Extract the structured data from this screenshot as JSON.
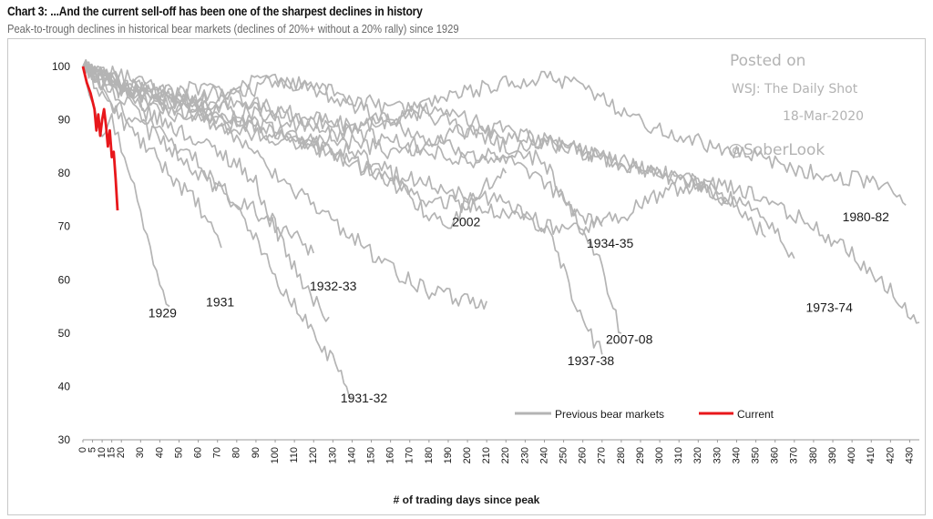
{
  "header": {
    "title": "Chart 3: ...And the current sell-off has been one of the sharpest declines in history",
    "subtitle": "Peak-to-trough declines in historical bear markets (declines of 20%+ without a 20% rally) since 1929"
  },
  "watermark": {
    "line1": "Posted on",
    "line2": "WSJ: The Daily Shot",
    "line3": "18-Mar-2020",
    "line4": "@SoberLook"
  },
  "colors": {
    "previous": "#b4b4b4",
    "current": "#e8171b",
    "axis": "#9a9a9a",
    "text": "#1a1a1a"
  },
  "chart_data": {
    "type": "line",
    "title": "Chart 3: ...And the current sell-off has been one of the sharpest declines in history",
    "subtitle": "Peak-to-trough declines in historical bear markets (declines of 20%+ without a 20% rally) since 1929",
    "xlabel": "# of trading days since peak",
    "ylabel": "",
    "xlim": [
      0,
      435
    ],
    "ylim": [
      30,
      100
    ],
    "yticks": [
      30,
      40,
      50,
      60,
      70,
      80,
      90,
      100
    ],
    "xticks": [
      0,
      5,
      10,
      15,
      20,
      30,
      40,
      50,
      60,
      70,
      80,
      90,
      100,
      110,
      120,
      130,
      140,
      150,
      160,
      170,
      180,
      190,
      200,
      210,
      220,
      230,
      240,
      250,
      260,
      270,
      280,
      290,
      300,
      310,
      320,
      330,
      340,
      350,
      360,
      370,
      380,
      390,
      400,
      410,
      420,
      430
    ],
    "legend": {
      "position": "bottom-right",
      "entries": [
        "Previous bear markets",
        "Current"
      ]
    },
    "series": [
      {
        "name": "1929",
        "group": "previous",
        "x": [
          0,
          5,
          10,
          15,
          20,
          25,
          30,
          35,
          40,
          45
        ],
        "y": [
          100,
          94,
          88,
          90,
          85,
          80,
          72,
          66,
          60,
          55
        ]
      },
      {
        "name": "1931",
        "group": "previous",
        "x": [
          0,
          10,
          20,
          30,
          40,
          50,
          60,
          65,
          70,
          72
        ],
        "y": [
          100,
          95,
          90,
          86,
          82,
          78,
          74,
          70,
          68,
          66
        ]
      },
      {
        "name": "1932-33",
        "group": "previous",
        "x": [
          0,
          10,
          20,
          30,
          40,
          50,
          60,
          70,
          80,
          90,
          100,
          110,
          120,
          128
        ],
        "y": [
          100,
          97,
          95,
          92,
          90,
          88,
          86,
          84,
          82,
          78,
          70,
          62,
          56,
          53
        ]
      },
      {
        "name": "1931-32",
        "group": "previous",
        "x": [
          0,
          20,
          40,
          60,
          80,
          90,
          100,
          110,
          120,
          130,
          140
        ],
        "y": [
          100,
          94,
          88,
          82,
          74,
          68,
          60,
          55,
          50,
          45,
          38
        ]
      },
      {
        "name": "2002",
        "group": "previous",
        "x": [
          0,
          20,
          40,
          60,
          80,
          100,
          120,
          140,
          160,
          170,
          180,
          190,
          200,
          210,
          220
        ],
        "y": [
          100,
          96,
          93,
          91,
          90,
          88,
          86,
          84,
          80,
          76,
          72,
          70,
          74,
          78,
          80
        ]
      },
      {
        "name": "1934-35",
        "group": "previous",
        "x": [
          0,
          20,
          40,
          60,
          80,
          100,
          120,
          140,
          160,
          180,
          200,
          220,
          240,
          260,
          270
        ],
        "y": [
          100,
          97,
          95,
          93,
          95,
          97,
          96,
          93,
          90,
          86,
          84,
          82,
          78,
          72,
          70
        ]
      },
      {
        "name": "1937-38",
        "group": "previous",
        "x": [
          0,
          20,
          40,
          60,
          80,
          100,
          120,
          140,
          160,
          180,
          200,
          220,
          240,
          250,
          260,
          270
        ],
        "y": [
          100,
          97,
          94,
          92,
          90,
          88,
          85,
          82,
          80,
          78,
          76,
          75,
          70,
          62,
          52,
          46
        ]
      },
      {
        "name": "2007-08",
        "group": "previous",
        "x": [
          0,
          20,
          40,
          60,
          80,
          100,
          120,
          140,
          160,
          180,
          200,
          220,
          240,
          250,
          260,
          270,
          280
        ],
        "y": [
          100,
          97,
          95,
          94,
          92,
          90,
          88,
          86,
          84,
          86,
          88,
          85,
          82,
          76,
          70,
          62,
          50
        ]
      },
      {
        "name": "1973-74",
        "group": "previous",
        "x": [
          0,
          20,
          40,
          60,
          80,
          100,
          120,
          140,
          160,
          180,
          200,
          220,
          240,
          260,
          280,
          300,
          320,
          340,
          360,
          380,
          400,
          420,
          435
        ],
        "y": [
          100,
          96,
          94,
          92,
          93,
          91,
          90,
          89,
          90,
          91,
          88,
          87,
          86,
          84,
          82,
          80,
          78,
          77,
          74,
          70,
          65,
          58,
          52
        ]
      },
      {
        "name": "1980-82",
        "group": "previous",
        "x": [
          0,
          20,
          40,
          60,
          80,
          100,
          120,
          140,
          160,
          180,
          200,
          220,
          240,
          260,
          280,
          300,
          320,
          340,
          360,
          380,
          400,
          420,
          428
        ],
        "y": [
          100,
          96,
          95,
          94,
          96,
          98,
          96,
          94,
          92,
          93,
          95,
          97,
          98,
          96,
          92,
          88,
          86,
          84,
          82,
          80,
          79,
          77,
          74
        ]
      },
      {
        "name": "",
        "group": "previous",
        "x": [
          0,
          20,
          40,
          60,
          80,
          100,
          120,
          140,
          160,
          180,
          200,
          220,
          240,
          260,
          280,
          300,
          320,
          340,
          360,
          370
        ],
        "y": [
          100,
          97,
          95,
          96,
          94,
          92,
          90,
          88,
          90,
          92,
          90,
          88,
          86,
          84,
          82,
          80,
          78,
          75,
          70,
          64
        ]
      },
      {
        "name": "",
        "group": "previous",
        "x": [
          0,
          20,
          40,
          60,
          80,
          100,
          120,
          140,
          160,
          180,
          200,
          220,
          240,
          260,
          280,
          300,
          320,
          340,
          355
        ],
        "y": [
          100,
          96,
          93,
          91,
          89,
          87,
          85,
          82,
          78,
          75,
          74,
          72,
          70,
          69,
          72,
          76,
          78,
          74,
          68
        ]
      },
      {
        "name": "",
        "group": "previous",
        "x": [
          0,
          15,
          30,
          45,
          60,
          75,
          90,
          100,
          110,
          120
        ],
        "y": [
          100,
          93,
          89,
          85,
          80,
          76,
          73,
          70,
          68,
          65
        ]
      },
      {
        "name": "",
        "group": "previous",
        "x": [
          0,
          20,
          40,
          60,
          80,
          100,
          120,
          140,
          160,
          180,
          200,
          210
        ],
        "y": [
          100,
          98,
          96,
          92,
          86,
          80,
          74,
          68,
          62,
          58,
          56,
          56
        ]
      },
      {
        "name": "",
        "group": "previous",
        "x": [
          0,
          20,
          40,
          60,
          80,
          100,
          120,
          140,
          160,
          180,
          200,
          220,
          240,
          260,
          280,
          300,
          320,
          335
        ],
        "y": [
          100,
          95,
          92,
          90,
          88,
          86,
          86,
          88,
          86,
          84,
          82,
          84,
          86,
          84,
          82,
          80,
          78,
          75
        ]
      },
      {
        "name": "Current",
        "group": "current",
        "x": [
          0,
          2,
          4,
          6,
          7,
          8,
          9,
          10,
          11,
          12,
          13,
          14,
          15,
          16,
          17,
          18
        ],
        "y": [
          100,
          97,
          95,
          92,
          88,
          91,
          87,
          90,
          92,
          89,
          85,
          88,
          83,
          84,
          79,
          73
        ]
      }
    ],
    "annotations": [
      {
        "text": "1929",
        "x": 34,
        "y": 53
      },
      {
        "text": "1931",
        "x": 64,
        "y": 55
      },
      {
        "text": "1932-33",
        "x": 118,
        "y": 58
      },
      {
        "text": "1931-32",
        "x": 134,
        "y": 37
      },
      {
        "text": "2002",
        "x": 192,
        "y": 70
      },
      {
        "text": "1934-35",
        "x": 262,
        "y": 66
      },
      {
        "text": "1937-38",
        "x": 252,
        "y": 44
      },
      {
        "text": "2007-08",
        "x": 272,
        "y": 48
      },
      {
        "text": "1973-74",
        "x": 376,
        "y": 54
      },
      {
        "text": "1980-82",
        "x": 395,
        "y": 71
      }
    ]
  }
}
